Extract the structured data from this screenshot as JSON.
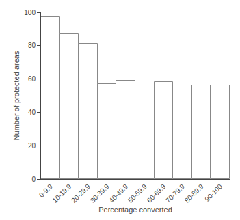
{
  "chart_data": {
    "type": "bar",
    "categories": [
      "0-9.9",
      "10-19.9",
      "20-29.9",
      "30-39.9",
      "40-49.9",
      "50-59.9",
      "60-69.9",
      "70-79.9",
      "80-89.9",
      "90-100"
    ],
    "values": [
      97,
      87,
      81,
      57,
      59,
      47,
      58,
      51,
      56,
      56
    ],
    "color": "#ffffff",
    "xlabel": "Percentage converted",
    "ylabel": "Number of protected areas",
    "ylim": [
      0,
      100
    ],
    "yticks": [
      0,
      20,
      40,
      60,
      80,
      100
    ],
    "grid": false
  }
}
